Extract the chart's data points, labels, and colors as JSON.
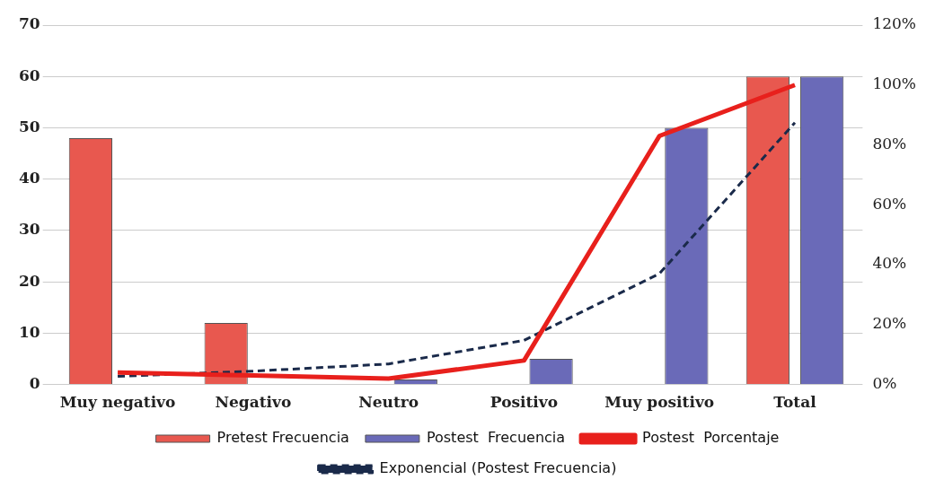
{
  "chart_data": {
    "type": "bar",
    "categories": [
      "Muy negativo",
      "Negativo",
      "Neutro",
      "Positivo",
      "Muy positivo",
      "Total"
    ],
    "series": [
      {
        "name": "Pretest Frecuencia",
        "color": "#e8584f",
        "values": [
          48,
          12,
          0,
          0,
          0,
          60
        ]
      },
      {
        "name": "Postest  Frecuencia",
        "color": "#6a6ab8",
        "values": [
          null,
          null,
          1,
          5,
          50,
          60
        ]
      },
      {
        "name": "Postest  Porcentaje",
        "type": "line",
        "axis": "y2",
        "color": "#e8201c",
        "marker": "none",
        "values": [
          4,
          3,
          2,
          8,
          83,
          100
        ]
      },
      {
        "name": "Exponencial (Postest Frecuencia)",
        "type": "line",
        "color": "#1a2a4a",
        "marker": "none",
        "line_style": "dashed",
        "values": [
          1.6,
          2.6,
          4,
          8.6,
          21.6,
          51
        ]
      }
    ],
    "ylim": [
      0,
      70
    ],
    "yticks": [
      0,
      10,
      20,
      30,
      40,
      50,
      60,
      70
    ],
    "y2lim": [
      0,
      120
    ],
    "y2ticks": [
      {
        "value": 0,
        "label": "0%"
      },
      {
        "value": 20,
        "label": "20%"
      },
      {
        "value": 40,
        "label": "40%"
      },
      {
        "value": 60,
        "label": "60%"
      },
      {
        "value": 80,
        "label": "80%"
      },
      {
        "value": 100,
        "label": "100%"
      },
      {
        "value": 120,
        "label": "120%"
      }
    ],
    "grid": "y",
    "legend": "bottom"
  }
}
